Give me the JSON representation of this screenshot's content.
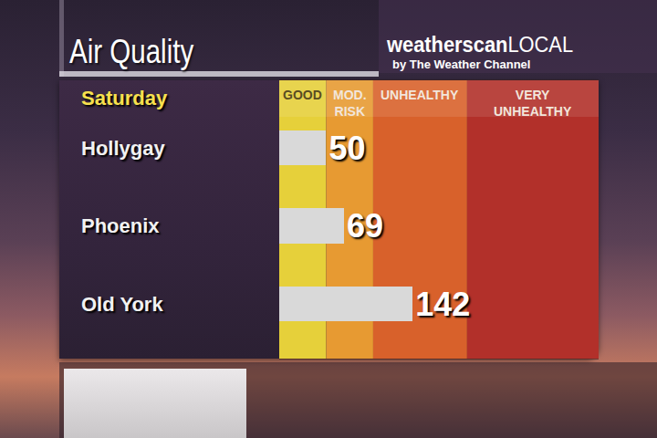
{
  "header": {
    "title": "Air Quality",
    "logo": {
      "name": "weatherscan",
      "suffix": "LOCAL",
      "byline": "by The Weather Channel"
    }
  },
  "chart_data": {
    "type": "bar",
    "orientation": "horizontal",
    "title": "Saturday",
    "categories": [
      "Hollygay",
      "Phoenix",
      "Old York"
    ],
    "values": [
      50,
      69,
      142
    ],
    "color": "#d9d9d9",
    "data_labels": true,
    "tick_labels": false,
    "grid": false,
    "xlim": [
      0,
      340
    ],
    "bands": [
      {
        "label": "GOOD",
        "from": 0,
        "to": 50,
        "color": "#e6d03a"
      },
      {
        "label": "MOD.\nRISK",
        "from": 50,
        "to": 100,
        "color": "#e79a32"
      },
      {
        "label": "UNHEALTHY",
        "from": 100,
        "to": 200,
        "color": "#d8612b"
      },
      {
        "label": "VERY\nUNHEALTHY",
        "from": 200,
        "to": 340,
        "color": "#b2302a"
      }
    ]
  }
}
